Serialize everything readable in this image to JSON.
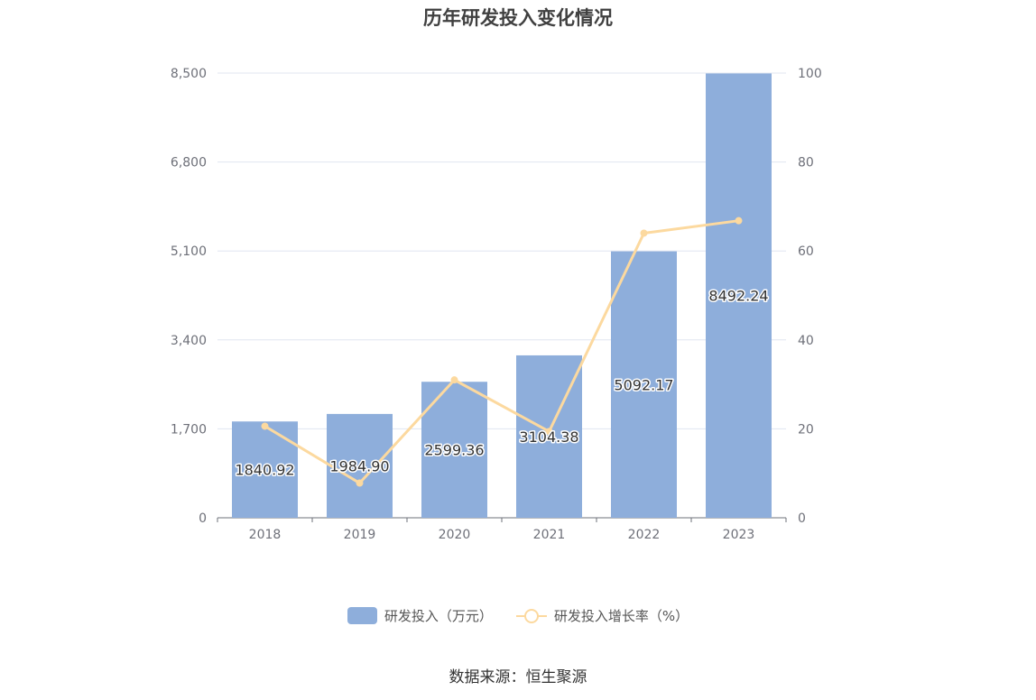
{
  "chart_data": {
    "type": "bar",
    "title": "历年研发投入变化情况",
    "categories": [
      "2018",
      "2019",
      "2020",
      "2021",
      "2022",
      "2023"
    ],
    "series": [
      {
        "name": "研发投入（万元）",
        "type": "bar",
        "axis": "left",
        "values": [
          1840.92,
          1984.9,
          2599.36,
          3104.38,
          5092.17,
          8492.24
        ],
        "labels": [
          "1840.92",
          "1984.90",
          "2599.36",
          "3104.38",
          "5092.17",
          "8492.24"
        ],
        "color": "#8eaedb"
      },
      {
        "name": "研发投入增长率（%）",
        "type": "line",
        "axis": "right",
        "values": [
          20.6,
          7.8,
          31.0,
          19.4,
          64.0,
          66.8
        ],
        "color": "#fcd99f"
      }
    ],
    "y_left": {
      "ylim": [
        0,
        8500
      ],
      "ticks": [
        0,
        1700,
        3400,
        5100,
        6800,
        8500
      ],
      "tick_labels": [
        "0",
        "1,700",
        "3,400",
        "5,100",
        "6,800",
        "8,500"
      ]
    },
    "y_right": {
      "ylim": [
        0,
        100
      ],
      "ticks": [
        0,
        20,
        40,
        60,
        80,
        100
      ],
      "tick_labels": [
        "0",
        "20",
        "40",
        "60",
        "80",
        "100"
      ]
    },
    "grid": true,
    "legend_position": "bottom-center"
  },
  "legend": {
    "bar_label": "研发投入（万元）",
    "line_label": "研发投入增长率（%）"
  },
  "source_note": "数据来源：恒生聚源",
  "colors": {
    "bar": "#8eaedb",
    "line": "#fcd99f",
    "grid": "#e0e6f1",
    "axis_text": "#6e7079"
  }
}
